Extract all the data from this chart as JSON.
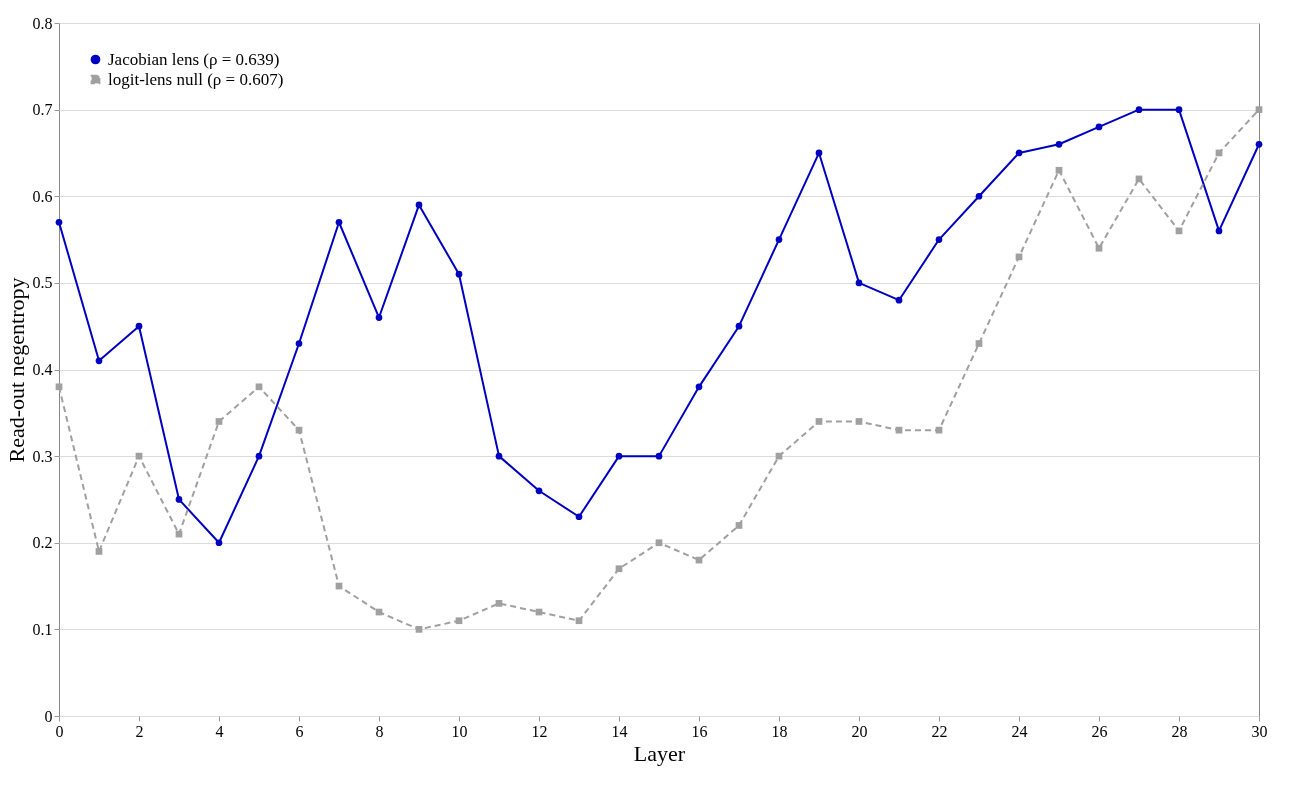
{
  "chart_data": {
    "type": "line",
    "xlabel": "Layer",
    "ylabel": "Read-out negentropy",
    "x": [
      0,
      1,
      2,
      3,
      4,
      5,
      6,
      7,
      8,
      9,
      10,
      11,
      12,
      13,
      14,
      15,
      16,
      17,
      18,
      19,
      20,
      21,
      22,
      23,
      24,
      25,
      26,
      27,
      28,
      29,
      30
    ],
    "series": [
      {
        "name": "Jacobian lens (ρ = 0.639)",
        "color": "#0000c0",
        "marker": "circle",
        "line_style": "solid",
        "values": [
          0.57,
          0.41,
          0.45,
          0.25,
          0.2,
          0.3,
          0.43,
          0.57,
          0.46,
          0.59,
          0.51,
          0.3,
          0.26,
          0.23,
          0.3,
          0.3,
          0.38,
          0.45,
          0.55,
          0.65,
          0.5,
          0.48,
          0.55,
          0.6,
          0.65,
          0.66,
          0.68,
          0.7,
          0.7,
          0.56,
          0.66
        ]
      },
      {
        "name": "logit-lens null (ρ = 0.607)",
        "color": "#a0a0a0",
        "marker": "square",
        "line_style": "dashed",
        "values": [
          0.38,
          0.19,
          0.3,
          0.21,
          0.34,
          0.38,
          0.33,
          0.15,
          0.12,
          0.1,
          0.11,
          0.13,
          0.12,
          0.11,
          0.17,
          0.2,
          0.18,
          0.22,
          0.3,
          0.34,
          0.34,
          0.33,
          0.33,
          0.43,
          0.53,
          0.63,
          0.54,
          0.62,
          0.56,
          0.65,
          0.7
        ]
      }
    ],
    "xlim": [
      0,
      30
    ],
    "xticks": [
      0,
      2,
      4,
      6,
      8,
      10,
      12,
      14,
      16,
      18,
      20,
      22,
      24,
      26,
      28,
      30
    ],
    "ylim": [
      0,
      0.8
    ],
    "yticks": [
      0,
      0.1,
      0.2,
      0.3,
      0.4,
      0.5,
      0.6,
      0.7,
      0.8
    ],
    "grid": "y",
    "legend": "top left"
  }
}
